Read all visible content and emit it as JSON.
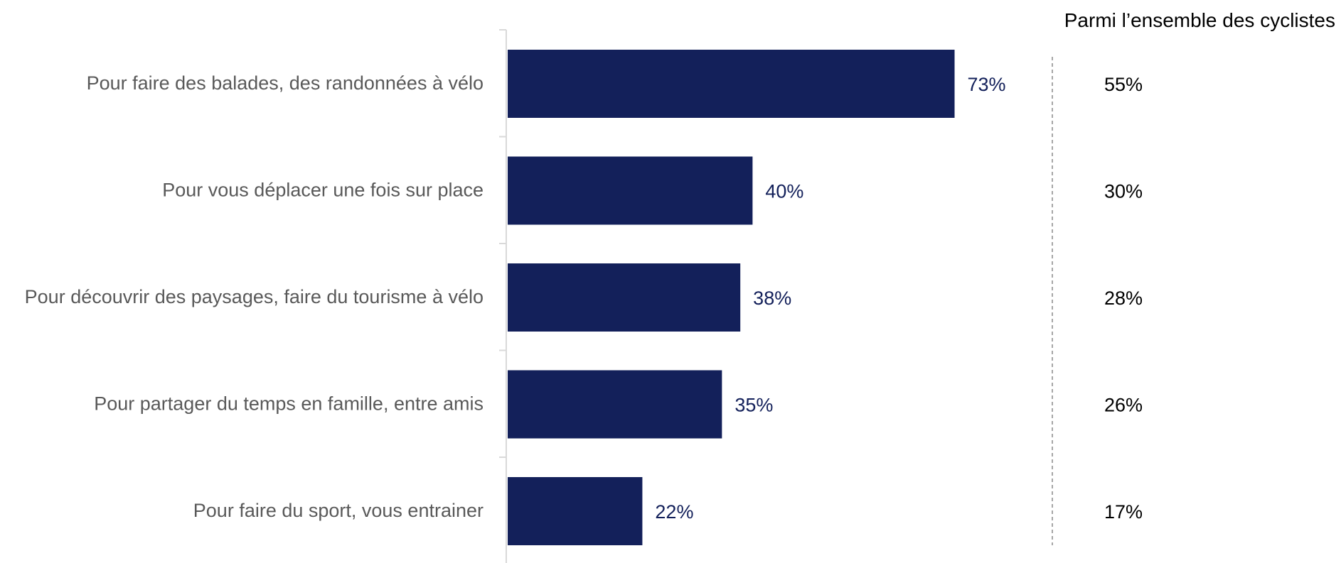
{
  "chart_data": {
    "type": "bar",
    "orientation": "horizontal",
    "categories": [
      "Pour faire des balades, des randonnées à vélo",
      "Pour vous déplacer une fois sur place",
      "Pour découvrir des paysages, faire du tourisme à vélo",
      "Pour partager du temps en famille, entre amis",
      "Pour faire du sport, vous entrainer"
    ],
    "values": [
      73,
      40,
      38,
      35,
      22
    ],
    "value_labels": [
      "73%",
      "40%",
      "38%",
      "35%",
      "22%"
    ],
    "comparison": {
      "title": "Parmi l’ensemble des cyclistes",
      "values": [
        55,
        30,
        28,
        26,
        17
      ],
      "labels": [
        "55%",
        "30%",
        "28%",
        "26%",
        "17%"
      ]
    },
    "xlim": [
      0,
      100
    ],
    "grid": false,
    "legend": "none"
  },
  "colors": {
    "bar": "#13205a",
    "value_text": "#13205a",
    "category_text": "#595959",
    "axis": "#d9d9d9",
    "divider": "#a6a6a6",
    "comparison_text": "#000000"
  }
}
